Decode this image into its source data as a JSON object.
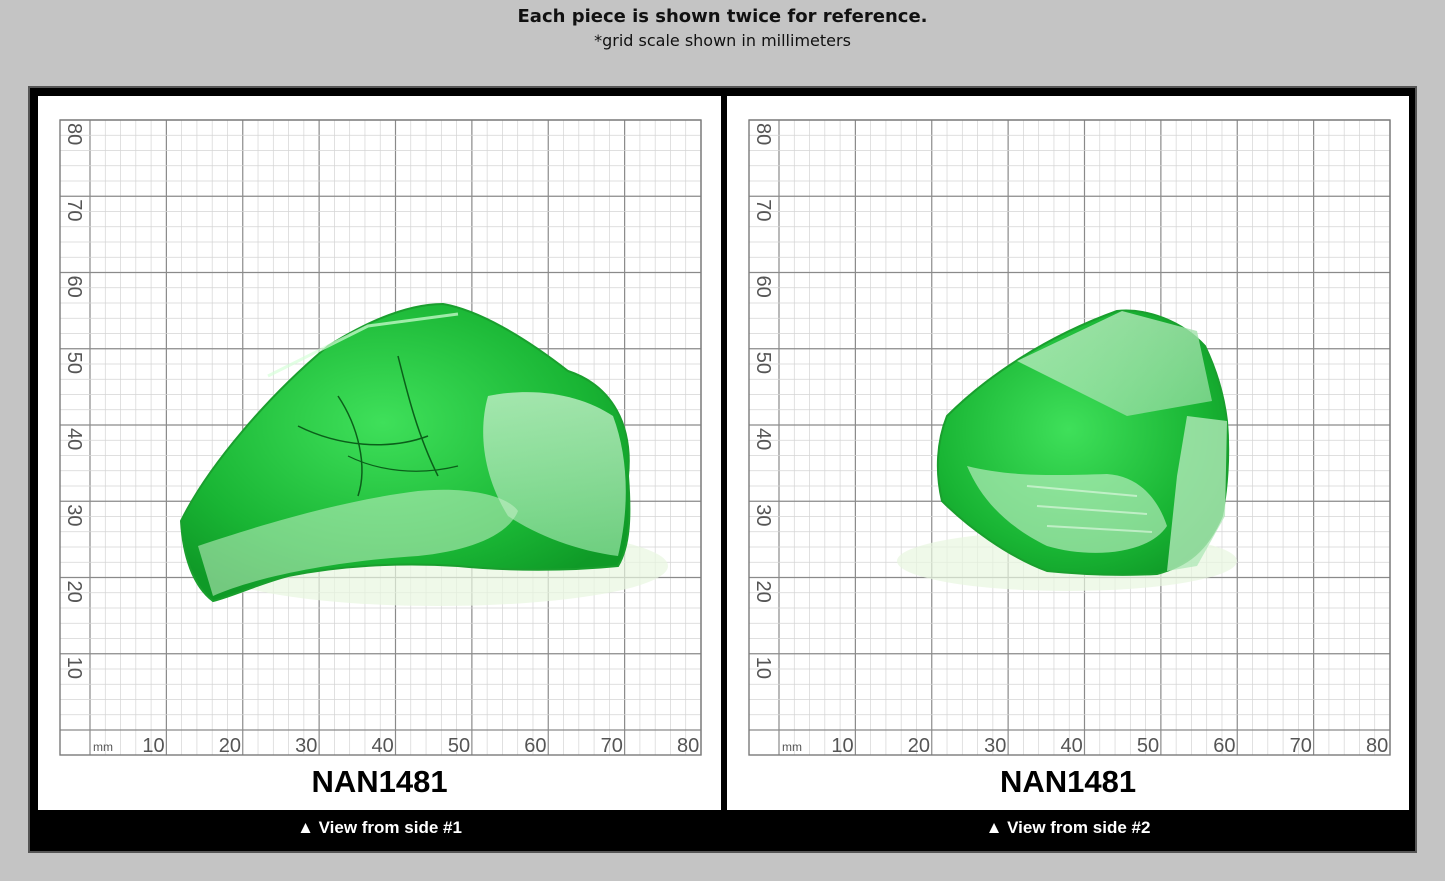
{
  "header": {
    "title": "Each piece is shown twice for reference.",
    "subtitle": "*grid scale shown in millimeters"
  },
  "colors": {
    "background": "#c4c4c4",
    "frame": "#000000",
    "grid_major": "#8a8a8a",
    "grid_minor": "#d4d4d4",
    "stone_green": "#22c53b"
  },
  "grid": {
    "unit": "mm",
    "x_ticks": [
      "10",
      "20",
      "30",
      "40",
      "50",
      "60",
      "70",
      "80"
    ],
    "y_ticks": [
      "10",
      "20",
      "30",
      "40",
      "50",
      "60",
      "70",
      "80"
    ]
  },
  "panels": [
    {
      "label": "NAN1481",
      "caption": "▲ View from side #1",
      "icon": "green-stone-side-1"
    },
    {
      "label": "NAN1481",
      "caption": "▲ View from side #2",
      "icon": "green-stone-side-2"
    }
  ]
}
